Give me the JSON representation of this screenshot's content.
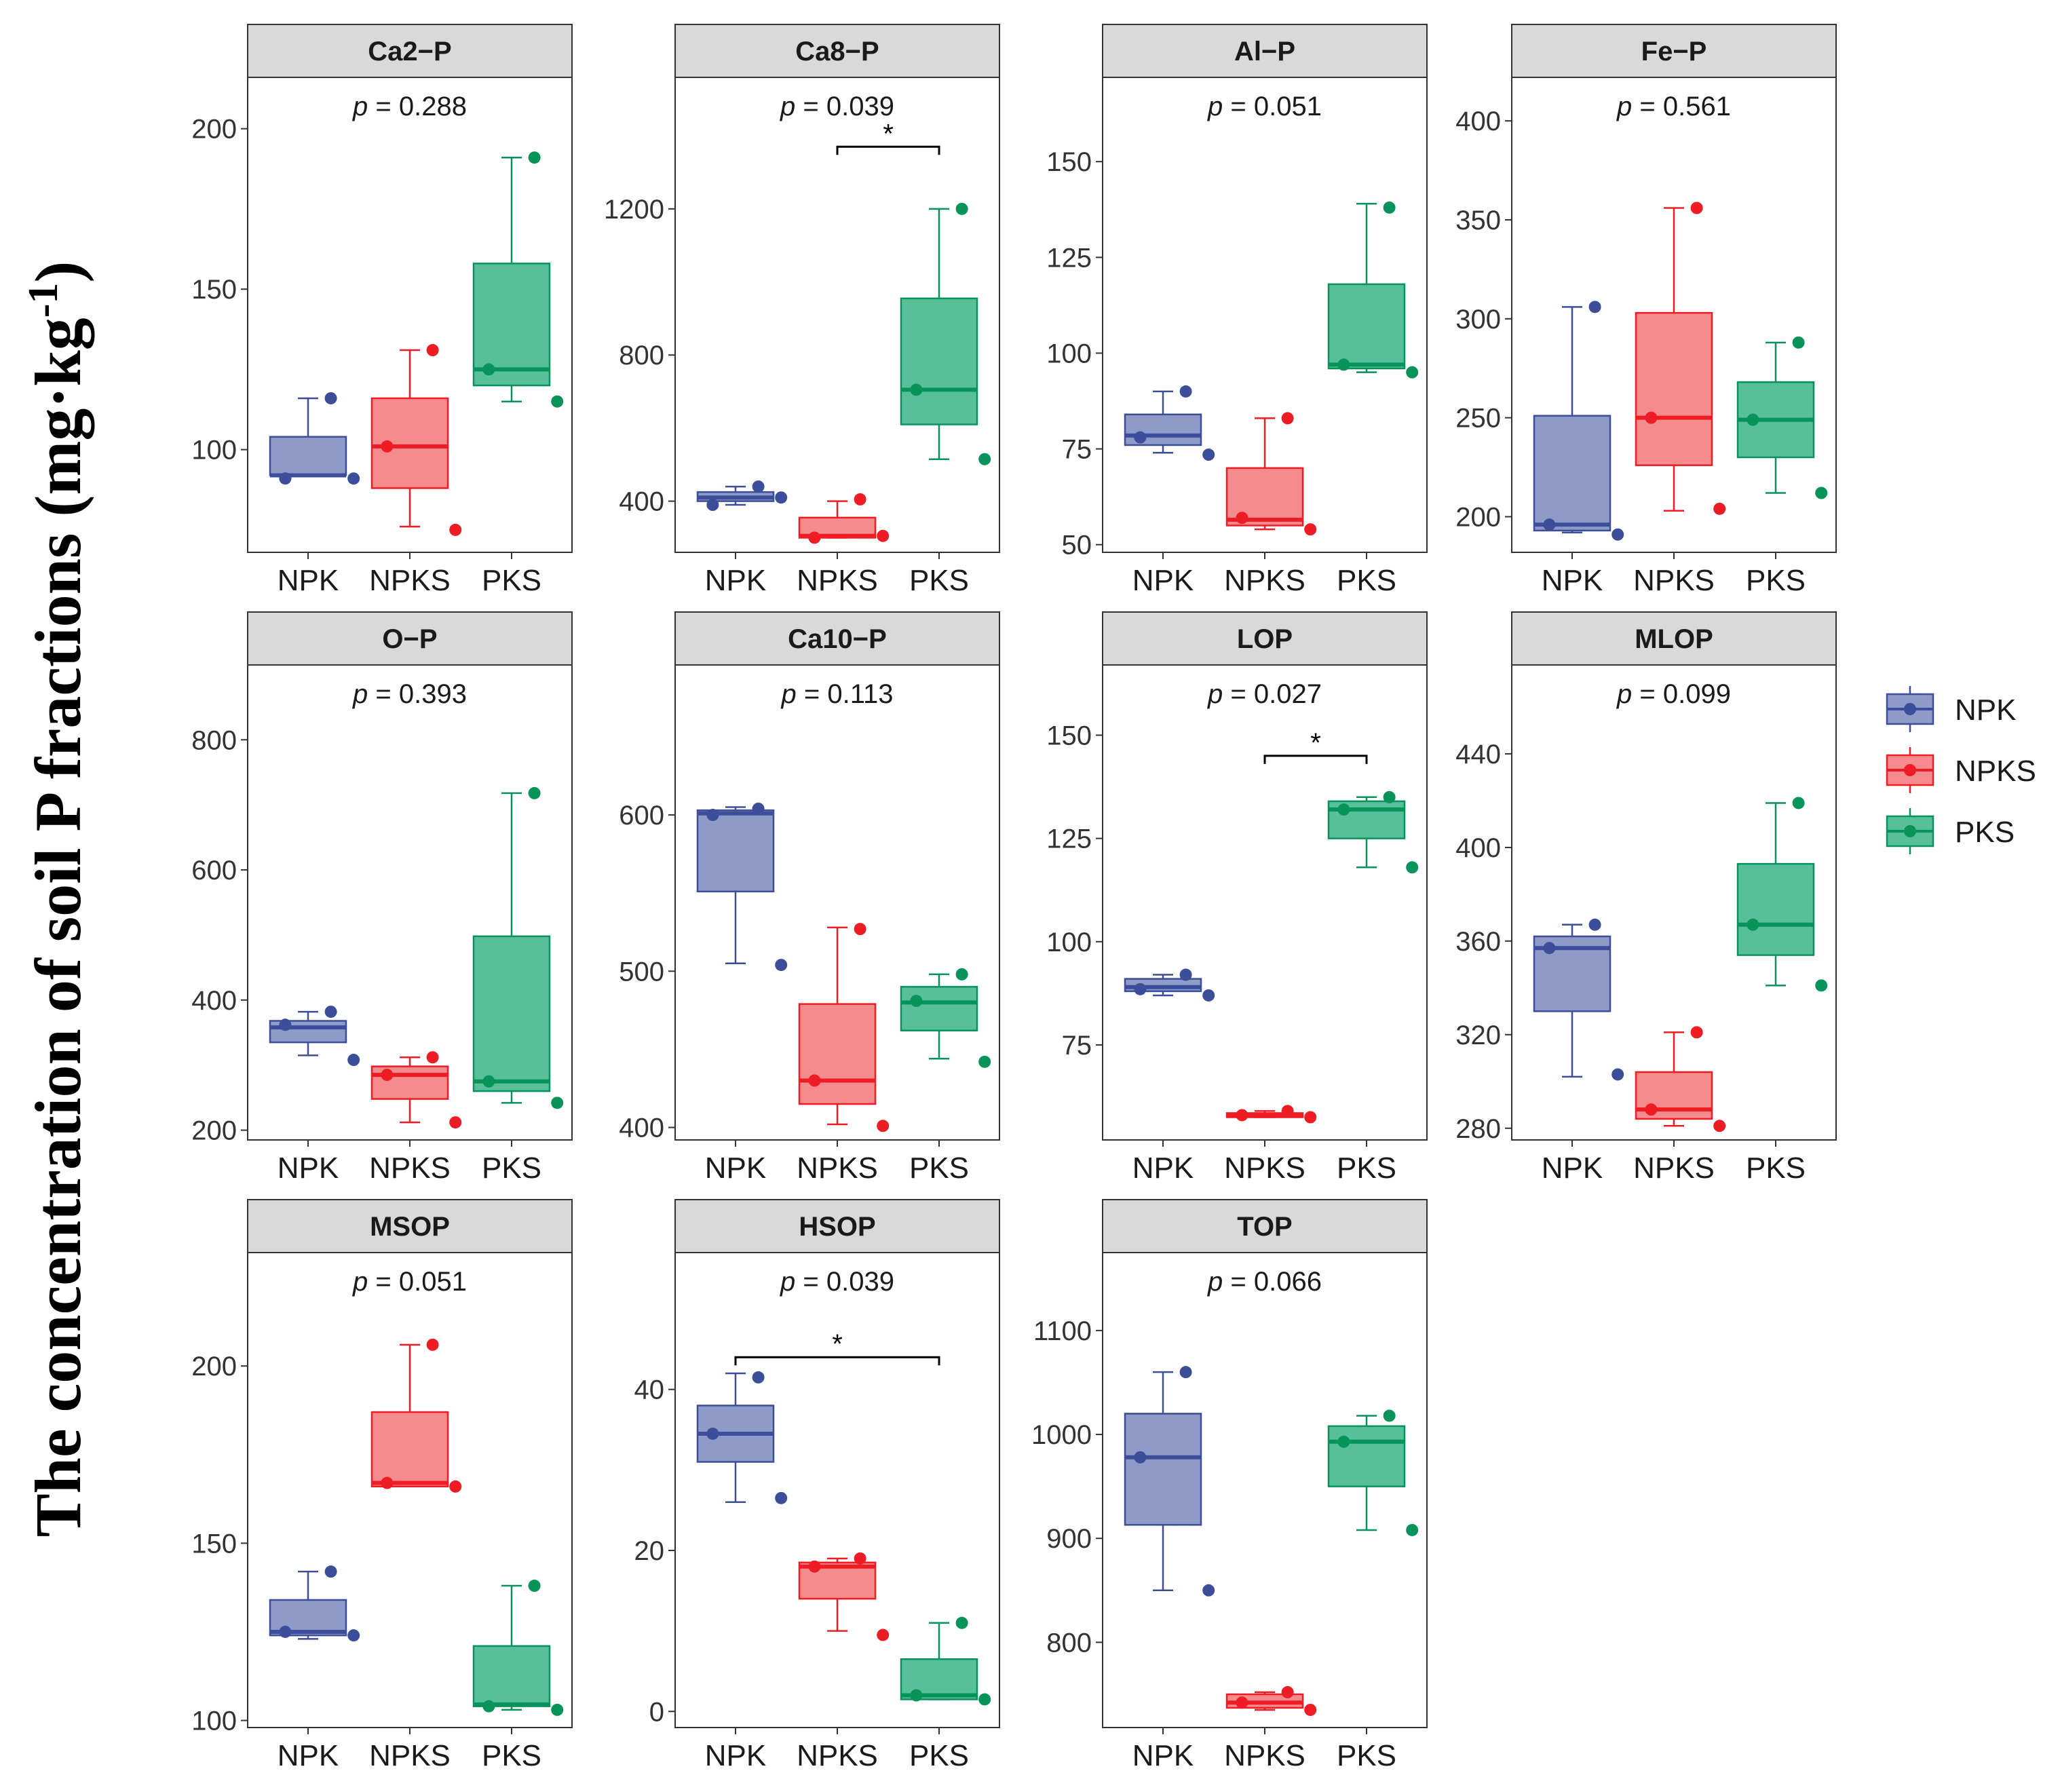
{
  "chart_data": {
    "type": "box",
    "y_axis_label": "The concentration of soil P fractions (mg·kg",
    "y_axis_label_superscript": "-1",
    "y_axis_label_close": ")",
    "groups": [
      "NPK",
      "NPKS",
      "PKS"
    ],
    "colors": {
      "NPK": "#3C4E9A",
      "NPKS": "#EE1C25",
      "PKS": "#08935A"
    },
    "fills": {
      "NPK": "#8E9AC8",
      "NPKS": "#F58B8D",
      "PKS": "#57C09A"
    },
    "legend": {
      "items": [
        "NPK",
        "NPKS",
        "PKS"
      ],
      "position": "right"
    },
    "p_prefix": "p",
    "panels": [
      {
        "title": "Ca2−P",
        "p_text": " = 0.288",
        "ylim": [
          68,
          216
        ],
        "ticks": [
          100,
          150,
          200
        ],
        "boxes": [
          {
            "q1": 92,
            "median": 92,
            "q3": 104,
            "lo": 92,
            "hi": 116,
            "points": [
              116,
              91,
              91
            ]
          },
          {
            "q1": 88,
            "median": 101,
            "q3": 116,
            "lo": 76,
            "hi": 131,
            "points": [
              131,
              101,
              75
            ]
          },
          {
            "q1": 120,
            "median": 125,
            "q3": 158,
            "lo": 115,
            "hi": 191,
            "points": [
              191,
              125,
              115
            ]
          }
        ],
        "sig": []
      },
      {
        "title": "Ca8−P",
        "p_text": " = 0.039",
        "ylim": [
          260,
          1560
        ],
        "ticks": [
          400,
          800,
          1200
        ],
        "boxes": [
          {
            "q1": 400,
            "median": 410,
            "q3": 425,
            "lo": 390,
            "hi": 440,
            "points": [
              440,
              390,
              410
            ]
          },
          {
            "q1": 300,
            "median": 305,
            "q3": 355,
            "lo": 300,
            "hi": 400,
            "points": [
              405,
              300,
              305
            ]
          },
          {
            "q1": 610,
            "median": 705,
            "q3": 955,
            "lo": 515,
            "hi": 1200,
            "points": [
              1200,
              705,
              515
            ]
          }
        ],
        "sig": [
          {
            "from": 1,
            "to": 2,
            "y": 1370,
            "label": "*"
          }
        ]
      },
      {
        "title": "Al−P",
        "p_text": " = 0.051",
        "ylim": [
          48,
          172
        ],
        "ticks": [
          50,
          75,
          100,
          125,
          150
        ],
        "boxes": [
          {
            "q1": 76,
            "median": 78.5,
            "q3": 84,
            "lo": 74,
            "hi": 90,
            "points": [
              90,
              78,
              73.5
            ]
          },
          {
            "q1": 55,
            "median": 56.5,
            "q3": 70,
            "lo": 54,
            "hi": 83,
            "points": [
              83,
              57,
              54
            ]
          },
          {
            "q1": 96,
            "median": 97,
            "q3": 118,
            "lo": 95,
            "hi": 139,
            "points": [
              138,
              97,
              95
            ]
          }
        ],
        "sig": []
      },
      {
        "title": "Fe−P",
        "p_text": " = 0.561",
        "ylim": [
          182,
          422
        ],
        "ticks": [
          200,
          250,
          300,
          350,
          400
        ],
        "boxes": [
          {
            "q1": 193,
            "median": 196,
            "q3": 251,
            "lo": 192,
            "hi": 306,
            "points": [
              306,
              196,
              191
            ]
          },
          {
            "q1": 226,
            "median": 250,
            "q3": 303,
            "lo": 203,
            "hi": 356,
            "points": [
              356,
              250,
              204
            ]
          },
          {
            "q1": 230,
            "median": 249,
            "q3": 268,
            "lo": 212,
            "hi": 288,
            "points": [
              288,
              249,
              212
            ]
          }
        ],
        "sig": []
      },
      {
        "title": "O−P",
        "p_text": " = 0.393",
        "ylim": [
          185,
          915
        ],
        "ticks": [
          200,
          400,
          600,
          800
        ],
        "boxes": [
          {
            "q1": 335,
            "median": 358,
            "q3": 368,
            "lo": 315,
            "hi": 382,
            "points": [
              382,
              362,
              308
            ]
          },
          {
            "q1": 248,
            "median": 285,
            "q3": 298,
            "lo": 212,
            "hi": 312,
            "points": [
              312,
              285,
              212
            ]
          },
          {
            "q1": 260,
            "median": 275,
            "q3": 498,
            "lo": 242,
            "hi": 718,
            "points": [
              718,
              275,
              242
            ]
          }
        ],
        "sig": []
      },
      {
        "title": "Ca10−P",
        "p_text": " = 0.113",
        "ylim": [
          392,
          696
        ],
        "ticks": [
          400,
          500,
          600
        ],
        "boxes": [
          {
            "q1": 551,
            "median": 601,
            "q3": 603,
            "lo": 505,
            "hi": 605,
            "points": [
              604,
              600,
              504
            ]
          },
          {
            "q1": 415,
            "median": 430,
            "q3": 479,
            "lo": 402,
            "hi": 528,
            "points": [
              527,
              430,
              401
            ]
          },
          {
            "q1": 462,
            "median": 480,
            "q3": 490,
            "lo": 444,
            "hi": 498,
            "points": [
              498,
              481,
              442
            ]
          }
        ],
        "sig": []
      },
      {
        "title": "LOP",
        "p_text": " = 0.027",
        "ylim": [
          52,
          167
        ],
        "ticks": [
          75,
          100,
          125,
          150
        ],
        "boxes": [
          {
            "q1": 88,
            "median": 89,
            "q3": 91,
            "lo": 87,
            "hi": 92,
            "points": [
              92,
              88.5,
              87
            ]
          },
          {
            "q1": 57.5,
            "median": 58,
            "q3": 58.5,
            "lo": 57.5,
            "hi": 59,
            "points": [
              59,
              58,
              57.5
            ]
          },
          {
            "q1": 125,
            "median": 132,
            "q3": 134,
            "lo": 118,
            "hi": 135,
            "points": [
              135,
              132,
              118
            ]
          }
        ],
        "sig": [
          {
            "from": 1,
            "to": 2,
            "y": 145,
            "label": "*"
          }
        ]
      },
      {
        "title": "MLOP",
        "p_text": " = 0.099",
        "ylim": [
          275,
          478
        ],
        "ticks": [
          280,
          320,
          360,
          400,
          440
        ],
        "boxes": [
          {
            "q1": 330,
            "median": 357,
            "q3": 362,
            "lo": 302,
            "hi": 367,
            "points": [
              367,
              357,
              303
            ]
          },
          {
            "q1": 284,
            "median": 288,
            "q3": 304,
            "lo": 281,
            "hi": 321,
            "points": [
              321,
              288,
              281
            ]
          },
          {
            "q1": 354,
            "median": 367,
            "q3": 393,
            "lo": 341,
            "hi": 419,
            "points": [
              419,
              367,
              341
            ]
          }
        ],
        "sig": []
      },
      {
        "title": "MSOP",
        "p_text": " = 0.051",
        "ylim": [
          98,
          232
        ],
        "ticks": [
          100,
          150,
          200
        ],
        "boxes": [
          {
            "q1": 124,
            "median": 125,
            "q3": 134,
            "lo": 123,
            "hi": 142,
            "points": [
              142,
              125,
              124
            ]
          },
          {
            "q1": 166,
            "median": 167,
            "q3": 187,
            "lo": 166,
            "hi": 206,
            "points": [
              206,
              167,
              166
            ]
          },
          {
            "q1": 104,
            "median": 104.5,
            "q3": 121,
            "lo": 103,
            "hi": 138,
            "points": [
              138,
              104,
              103
            ]
          }
        ],
        "sig": []
      },
      {
        "title": "HSOP",
        "p_text": " = 0.039",
        "ylim": [
          -2,
          57
        ],
        "ticks": [
          0,
          20,
          40
        ],
        "boxes": [
          {
            "q1": 31,
            "median": 34.5,
            "q3": 38,
            "lo": 26,
            "hi": 42,
            "points": [
              41.5,
              34.5,
              26.5
            ]
          },
          {
            "q1": 14,
            "median": 18,
            "q3": 18.5,
            "lo": 10,
            "hi": 19,
            "points": [
              19,
              18,
              9.5
            ]
          },
          {
            "q1": 1.5,
            "median": 2,
            "q3": 6.5,
            "lo": 1.5,
            "hi": 11,
            "points": [
              11,
              2,
              1.5
            ]
          }
        ],
        "sig": [
          {
            "from": 0,
            "to": 2,
            "y": 44,
            "label": "*"
          }
        ]
      },
      {
        "title": "TOP",
        "p_text": " = 0.066",
        "ylim": [
          718,
          1175
        ],
        "ticks": [
          800,
          900,
          1000,
          1100
        ],
        "boxes": [
          {
            "q1": 913,
            "median": 978,
            "q3": 1020,
            "lo": 850,
            "hi": 1060,
            "points": [
              1060,
              978,
              850
            ]
          },
          {
            "q1": 737,
            "median": 742,
            "q3": 750,
            "lo": 735,
            "hi": 752,
            "points": [
              752,
              742,
              735
            ]
          },
          {
            "q1": 950,
            "median": 993,
            "q3": 1008,
            "lo": 908,
            "hi": 1018,
            "points": [
              1018,
              993,
              908
            ]
          }
        ],
        "sig": []
      }
    ]
  }
}
